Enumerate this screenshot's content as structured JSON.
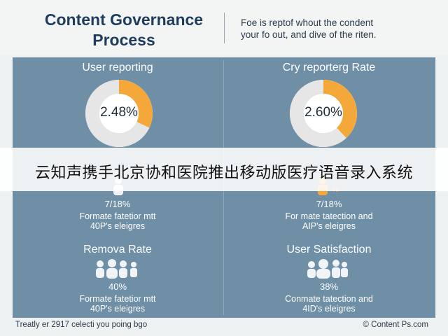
{
  "header": {
    "title_line1": "Content Governance",
    "title_line2": "Process",
    "subtitle_line1": "Foe is reptof whout the condent",
    "subtitle_line2": "your fo out, and dive of the riten."
  },
  "left": {
    "top": {
      "title": "User reporting",
      "donut_label": "2.48%",
      "donut_fraction": 0.32,
      "value": "7/18%",
      "desc_line1": "Formate fatetior mtt",
      "desc_line2": "40P's eleigres",
      "icon": "person-icon"
    },
    "bottom": {
      "title": "Remova Rate",
      "value": "40%",
      "desc_line1": "Formate fatetior mtt",
      "desc_line2": "40P's eleigres",
      "icon": "people-group-icon"
    }
  },
  "right": {
    "top": {
      "title": "Cry reporterg Rate",
      "donut_label": "2.60%",
      "donut_fraction": 0.38,
      "value": "7/18%",
      "desc_line1": "For mate tatection and",
      "desc_line2": "AIP's eleigres",
      "icon": "person-percent-icon"
    },
    "bottom": {
      "title": "User Satisfaction",
      "value": "38%",
      "desc_line1": "Conmate tatection and",
      "desc_line2": "4ID's eleigres",
      "icon": "people-group-icon"
    }
  },
  "banner": {
    "text": "云知声携手北京协和医院推出移动版医疗语音录入系统"
  },
  "footer": {
    "left": "Treatly er 2917 celecti you poing bgo",
    "right": "© Content Ps.com"
  },
  "colors": {
    "accent": "#f5a83a",
    "donut_track": "#e6e6e6",
    "panel": "#6e8fa6",
    "title": "#1f3c5c"
  }
}
